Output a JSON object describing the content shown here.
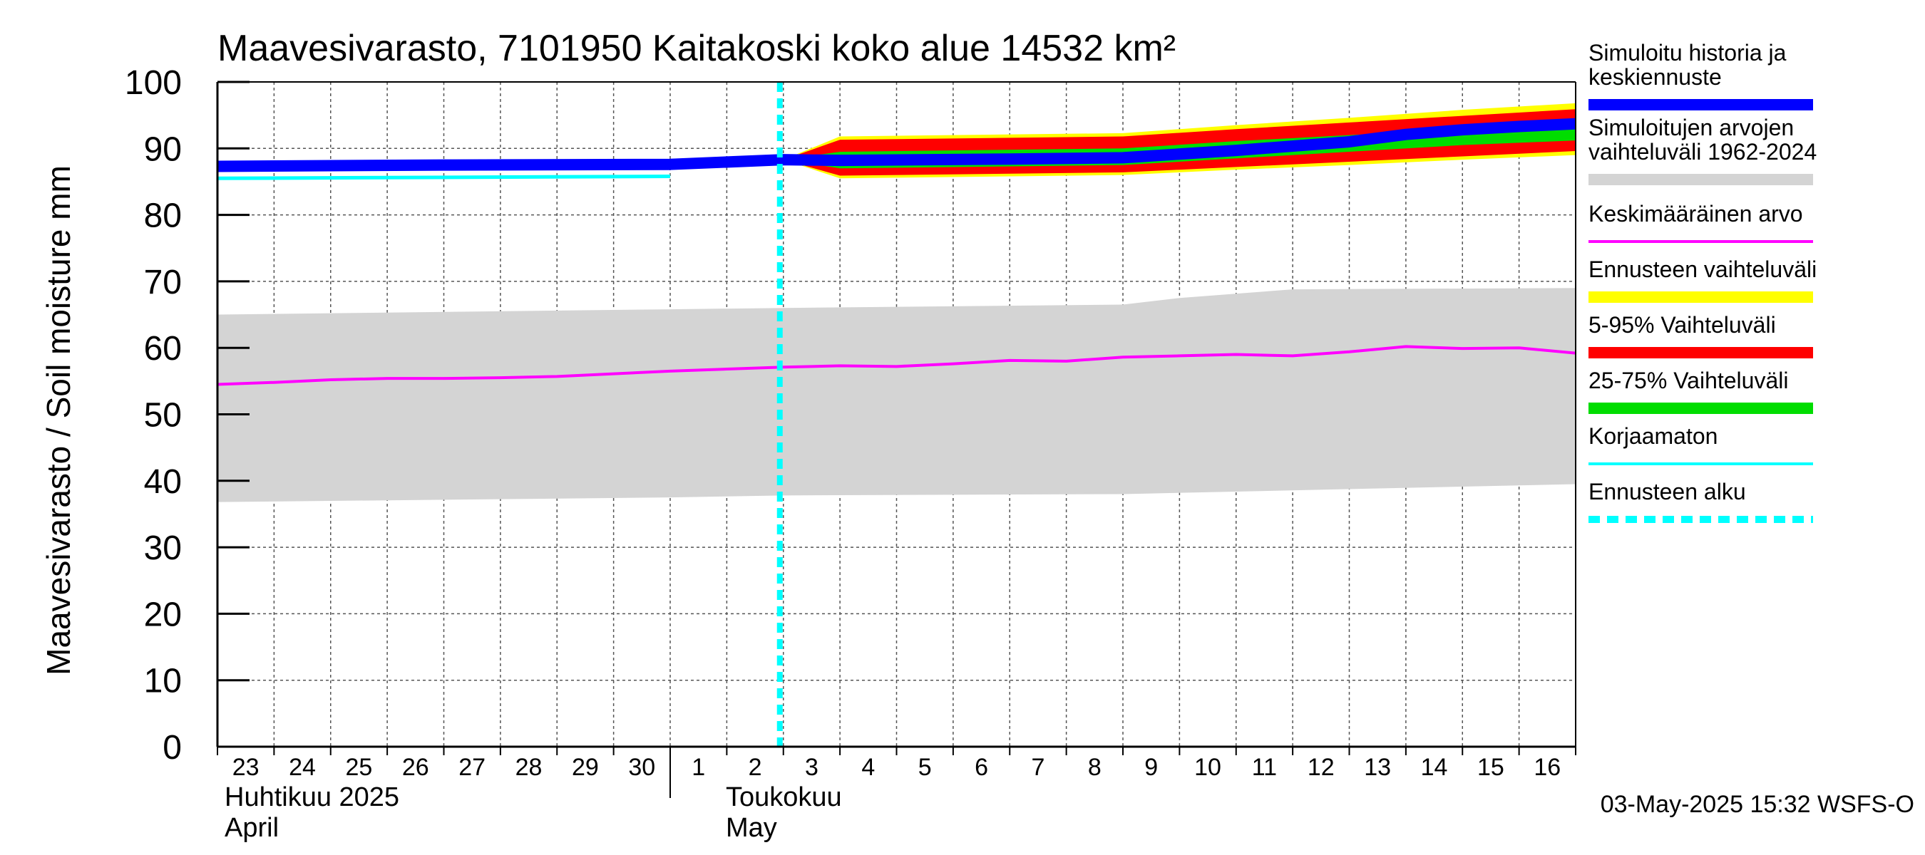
{
  "chart_data": {
    "type": "line",
    "title": "Maavesivarasto, 7101950 Kaitakoski koko alue 14532 km²",
    "ylabel": "Maavesivarasto / Soil moisture   mm",
    "ylim": [
      0,
      100
    ],
    "yticks": [
      "0",
      "10",
      "20",
      "30",
      "40",
      "50",
      "60",
      "70",
      "80",
      "90",
      "100"
    ],
    "x_days": [
      "23",
      "24",
      "25",
      "26",
      "27",
      "28",
      "29",
      "30",
      "1",
      "2",
      "3",
      "4",
      "5",
      "6",
      "7",
      "8",
      "9",
      "10",
      "11",
      "12",
      "13",
      "14",
      "15",
      "16"
    ],
    "month_labels": [
      {
        "fi": "Huhtikuu  2025",
        "en": "April"
      },
      {
        "fi": "Toukokuu",
        "en": "May"
      }
    ],
    "forecast_start_day": 10,
    "timestamp": "03-May-2025 15:32 WSFS-O",
    "series": [
      {
        "name": "Simuloitujen arvojen vaihteluväli 1962-2024",
        "color": "#d4d4d4",
        "lower": [
          [
            0,
            36.8
          ],
          [
            8,
            37.5
          ],
          [
            10,
            37.8
          ],
          [
            16,
            38
          ],
          [
            24,
            39.5
          ]
        ],
        "upper": [
          [
            0,
            65
          ],
          [
            8,
            65.8
          ],
          [
            10,
            66
          ],
          [
            16,
            66.5
          ],
          [
            17,
            67.5
          ],
          [
            19,
            68.8
          ],
          [
            24,
            69
          ]
        ]
      },
      {
        "name": "Keskimääräinen arvo",
        "color": "#ff00ff",
        "values": [
          [
            0,
            54.5
          ],
          [
            1,
            54.8
          ],
          [
            2,
            55.2
          ],
          [
            3,
            55.4
          ],
          [
            4,
            55.4
          ],
          [
            5,
            55.5
          ],
          [
            6,
            55.7
          ],
          [
            7,
            56.1
          ],
          [
            8,
            56.5
          ],
          [
            9,
            56.8
          ],
          [
            10,
            57.1
          ],
          [
            11,
            57.3
          ],
          [
            12,
            57.2
          ],
          [
            13,
            57.6
          ],
          [
            14,
            58.1
          ],
          [
            15,
            58.0
          ],
          [
            16,
            58.6
          ],
          [
            17,
            58.8
          ],
          [
            18,
            59.0
          ],
          [
            19,
            58.8
          ],
          [
            20,
            59.4
          ],
          [
            21,
            60.2
          ],
          [
            22,
            59.9
          ],
          [
            23,
            60.0
          ],
          [
            24,
            59.2
          ]
        ]
      },
      {
        "name": "Korjaamaton",
        "color": "#00ffff",
        "values": [
          [
            0,
            85.5
          ],
          [
            8,
            85.8
          ]
        ]
      },
      {
        "name": "Ennusteen vaihteluväli",
        "color": "#ffff00",
        "lower": [
          [
            10,
            88.3
          ],
          [
            11,
            85.5
          ],
          [
            16,
            86
          ],
          [
            18,
            86.8
          ],
          [
            20,
            87.5
          ],
          [
            22,
            88.3
          ],
          [
            24,
            89
          ]
        ],
        "upper": [
          [
            10,
            88.3
          ],
          [
            11,
            91.8
          ],
          [
            16,
            92.3
          ],
          [
            18,
            93.5
          ],
          [
            20,
            94.6
          ],
          [
            22,
            95.8
          ],
          [
            24,
            96.8
          ]
        ]
      },
      {
        "name": "5-95% Vaihteluväli",
        "color": "#ff0000",
        "lower": [
          [
            10,
            88.3
          ],
          [
            11,
            85.9
          ],
          [
            16,
            86.4
          ],
          [
            18,
            87.2
          ],
          [
            20,
            88
          ],
          [
            22,
            88.8
          ],
          [
            24,
            89.6
          ]
        ],
        "upper": [
          [
            10,
            88.3
          ],
          [
            11,
            91.3
          ],
          [
            16,
            91.8
          ],
          [
            18,
            92.9
          ],
          [
            20,
            93.9
          ],
          [
            22,
            94.9
          ],
          [
            24,
            95.9
          ]
        ]
      },
      {
        "name": "25-75% Vaihteluväli",
        "color": "#00dd00",
        "lower": [
          [
            10,
            88.3
          ],
          [
            11,
            87
          ],
          [
            16,
            87.5
          ],
          [
            18,
            88.5
          ],
          [
            20,
            89.5
          ],
          [
            22,
            90.5
          ],
          [
            24,
            91.2
          ]
        ],
        "upper": [
          [
            10,
            88.3
          ],
          [
            11,
            89.5
          ],
          [
            16,
            90
          ],
          [
            18,
            91.1
          ],
          [
            20,
            92
          ],
          [
            22,
            92.9
          ],
          [
            24,
            93.7
          ]
        ]
      },
      {
        "name": "Simuloitu historia ja keskiennuste",
        "color": "#0000ff",
        "values": [
          [
            0,
            87.3
          ],
          [
            4,
            87.5
          ],
          [
            8,
            87.6
          ],
          [
            10,
            88.3
          ],
          [
            11,
            88.2
          ],
          [
            14,
            88.4
          ],
          [
            16,
            88.6
          ],
          [
            18,
            89.7
          ],
          [
            20,
            91
          ],
          [
            21,
            92.1
          ],
          [
            22,
            92.8
          ],
          [
            23,
            93.3
          ],
          [
            24,
            93.7
          ]
        ]
      }
    ]
  },
  "legend": [
    {
      "lines": [
        "Simuloitu historia ja",
        "keskiennuste"
      ],
      "color": "#0000ff",
      "style": "thick"
    },
    {
      "lines": [
        "Simuloitujen arvojen",
        "vaihteluväli 1962-2024"
      ],
      "color": "#d4d4d4",
      "style": "thick"
    },
    {
      "lines": [
        "Keskimääräinen arvo"
      ],
      "color": "#ff00ff",
      "style": "thin"
    },
    {
      "lines": [
        "Ennusteen vaihteluväli"
      ],
      "color": "#ffff00",
      "style": "thick"
    },
    {
      "lines": [
        "5-95% Vaihteluväli"
      ],
      "color": "#ff0000",
      "style": "thick"
    },
    {
      "lines": [
        "25-75% Vaihteluväli"
      ],
      "color": "#00dd00",
      "style": "thick"
    },
    {
      "lines": [
        "Korjaamaton"
      ],
      "color": "#00ffff",
      "style": "thin"
    },
    {
      "lines": [
        "Ennusteen alku"
      ],
      "color": "#00ffff",
      "style": "dashed"
    }
  ]
}
